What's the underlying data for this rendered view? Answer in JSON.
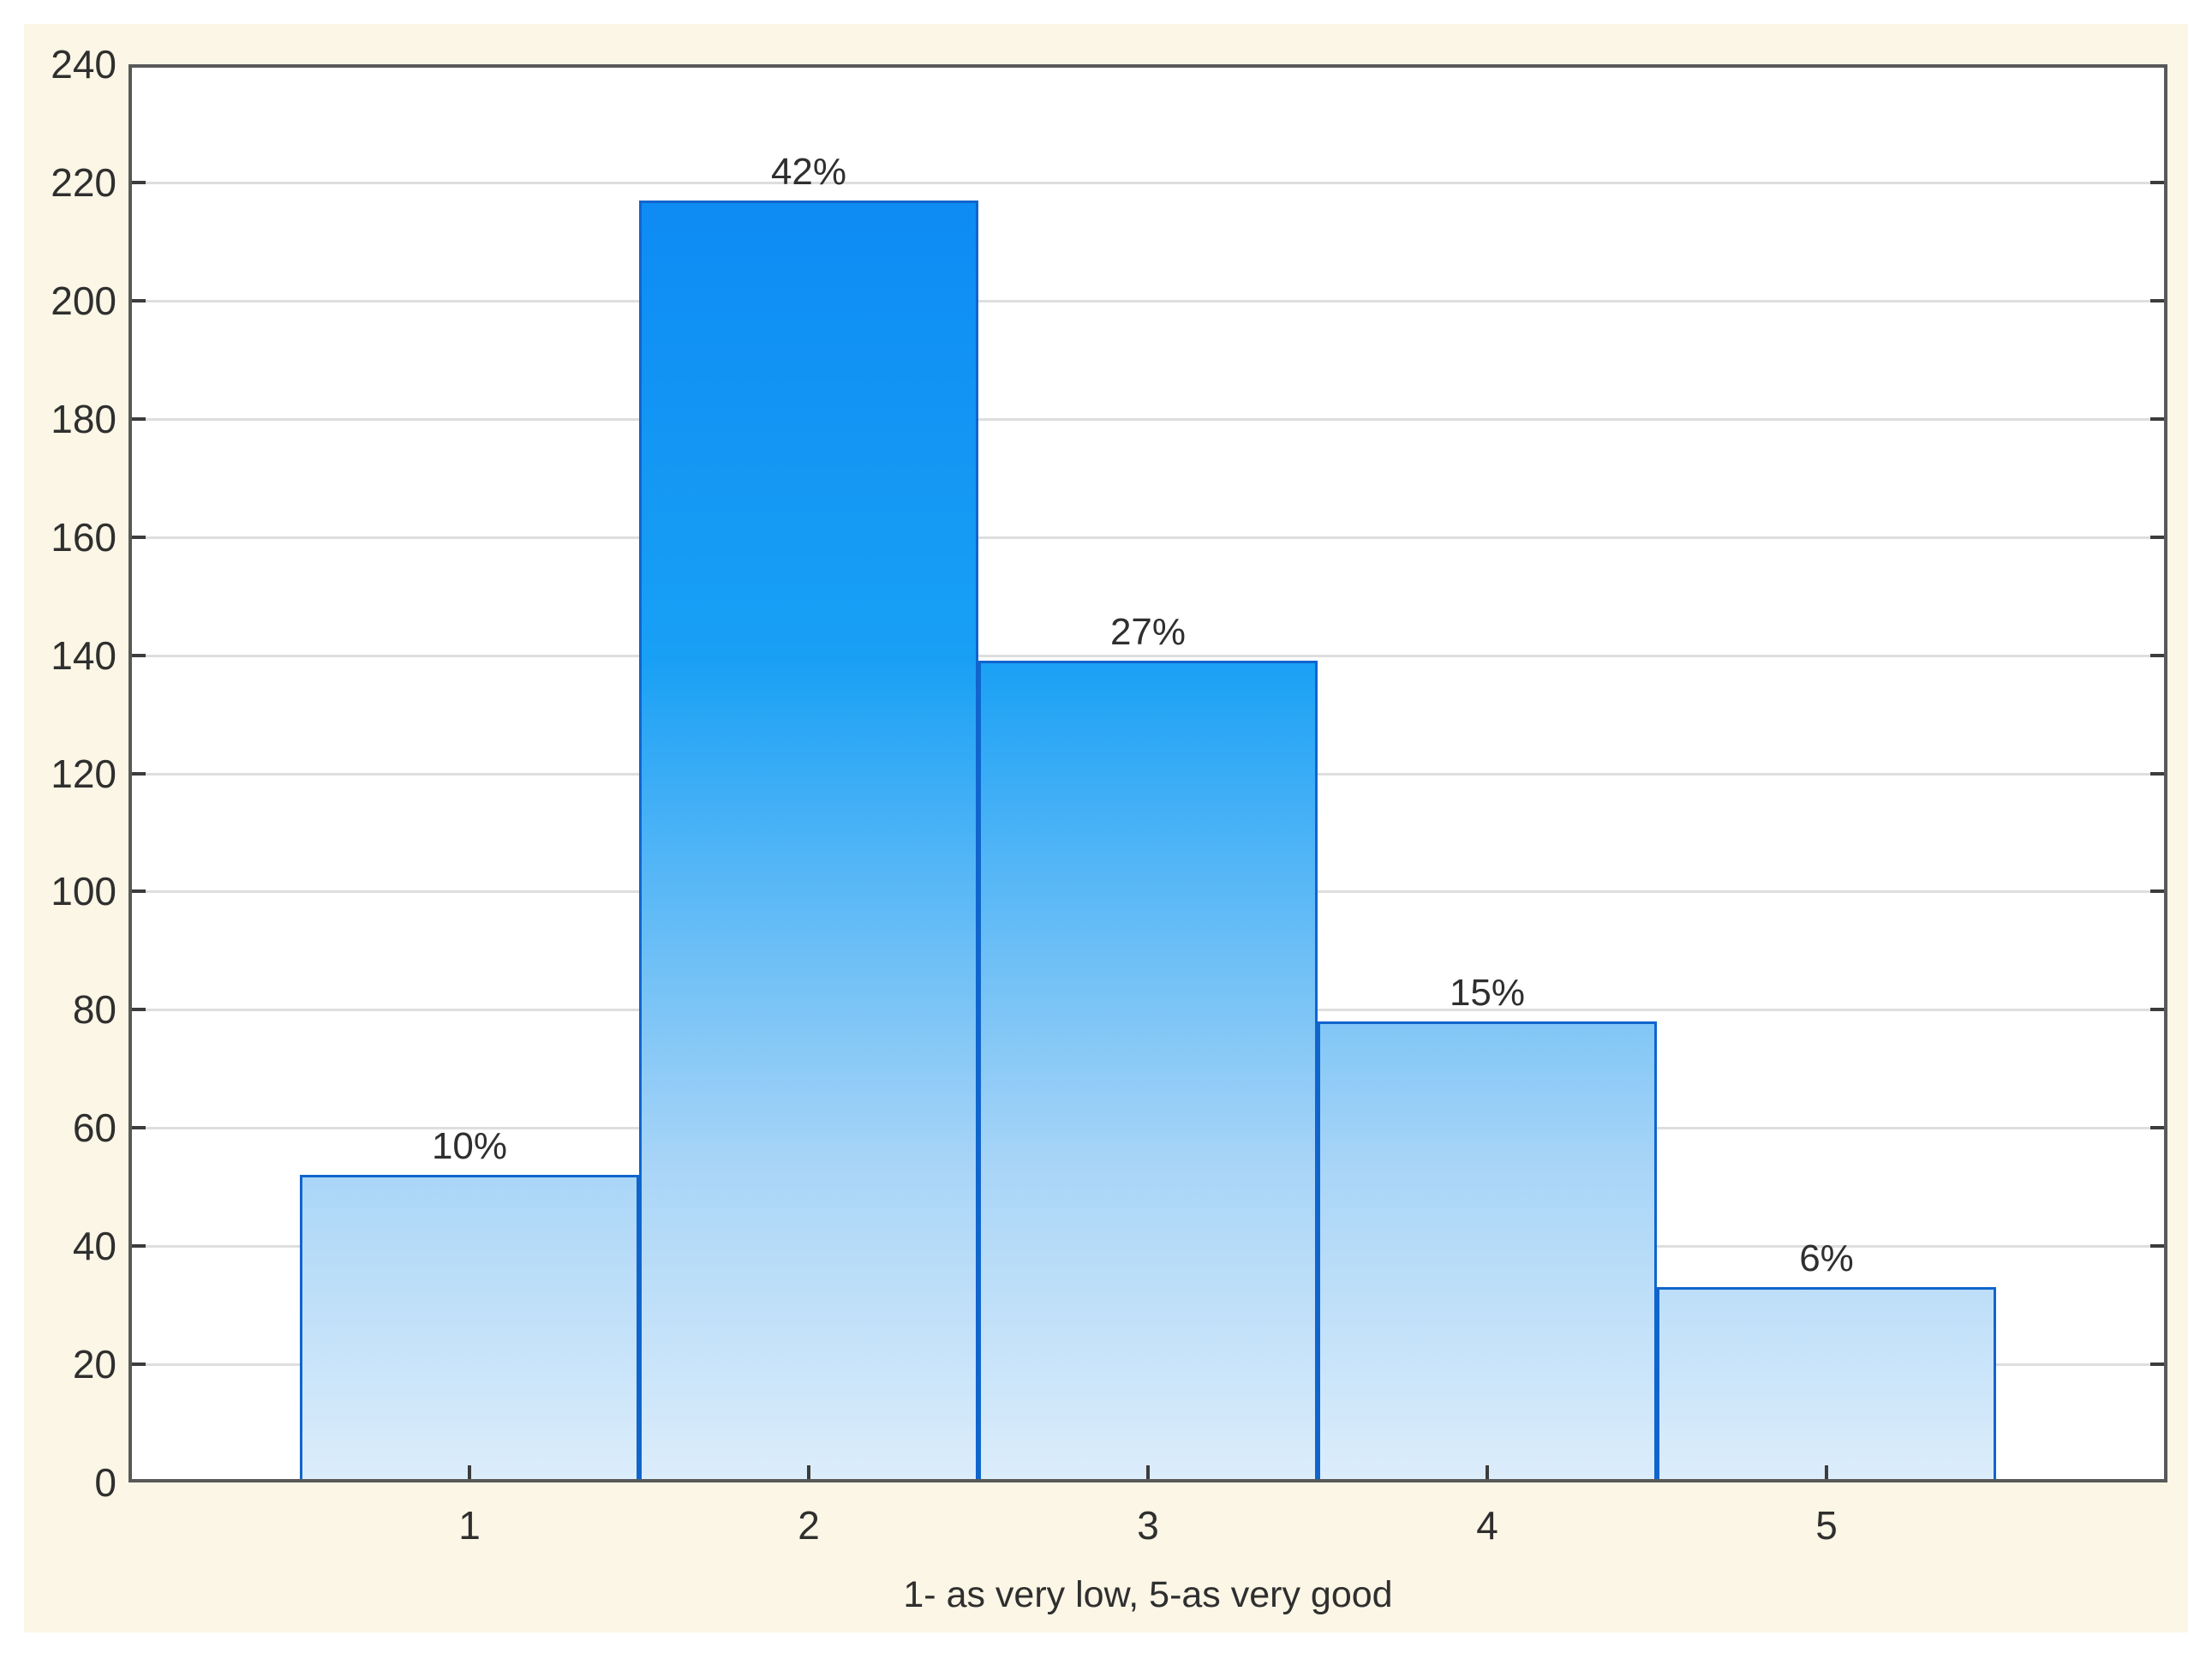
{
  "chart_data": {
    "type": "bar",
    "subtype": "histogram",
    "title": "",
    "xlabel": "1- as very low, 5-as very good",
    "ylabel": "",
    "categories": [
      "1",
      "2",
      "3",
      "4",
      "5"
    ],
    "values": [
      52,
      217,
      139,
      78,
      33
    ],
    "data_labels": [
      "10%",
      "42%",
      "27%",
      "15%",
      "6%"
    ],
    "ylim": [
      0,
      240
    ],
    "y_tick_step": 20,
    "y_ticks": [
      "0",
      "20",
      "40",
      "60",
      "80",
      "100",
      "120",
      "140",
      "160",
      "180",
      "200",
      "220",
      "240"
    ],
    "grid": "horizontal",
    "legend": "none",
    "colors": {
      "page_background": "#ffffff",
      "panel_background": "#fbf6e5",
      "plot_background": "#ffffff",
      "axis_frame": "#595959",
      "gridline": "#dedede",
      "tick_mark": "#3c3c3c",
      "bar_border": "#1065cd",
      "bar_gradient_top": "#0a85f3",
      "bar_gradient_mid1": "#18a0f5",
      "bar_gradient_mid2": "#a9d5f7",
      "bar_gradient_bottom": "#dcedfb",
      "text": "#2f2f2f"
    }
  }
}
